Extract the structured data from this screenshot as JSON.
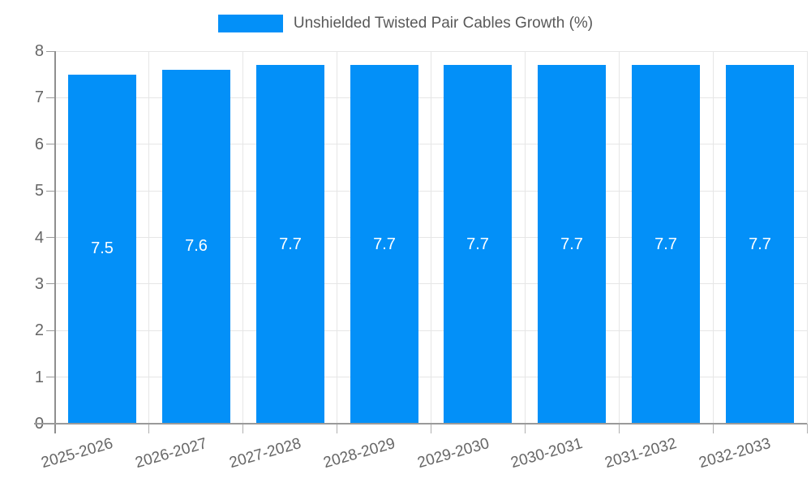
{
  "chart_data": {
    "type": "bar",
    "title": "Unshielded Twisted Pair Cables Growth (%)",
    "categories": [
      "2025-2026",
      "2026-2027",
      "2027-2028",
      "2028-2029",
      "2029-2030",
      "2030-2031",
      "2031-2032",
      "2032-2033"
    ],
    "series": [
      {
        "name": "Unshielded Twisted Pair Cables Growth (%)",
        "values": [
          7.5,
          7.6,
          7.7,
          7.7,
          7.7,
          7.7,
          7.7,
          7.7
        ]
      }
    ],
    "value_labels": [
      "7.5",
      "7.6",
      "7.7",
      "7.7",
      "7.7",
      "7.7",
      "7.7",
      "7.7"
    ],
    "xlabel": "",
    "ylabel": "",
    "ylim": [
      0,
      8
    ],
    "yticks": [
      0,
      1,
      2,
      3,
      4,
      5,
      6,
      7,
      8
    ],
    "grid": true,
    "legend_position": "top",
    "legend": {
      "label": "Unshielded Twisted Pair Cables Growth (%)"
    },
    "colors": {
      "bar": "#0390f8",
      "bar_value_text": "#ffffff",
      "tick_text": "#666666",
      "legend_text": "#595959",
      "gridline": "#e6e6e6",
      "axis_line": "#9a9a9a"
    }
  }
}
